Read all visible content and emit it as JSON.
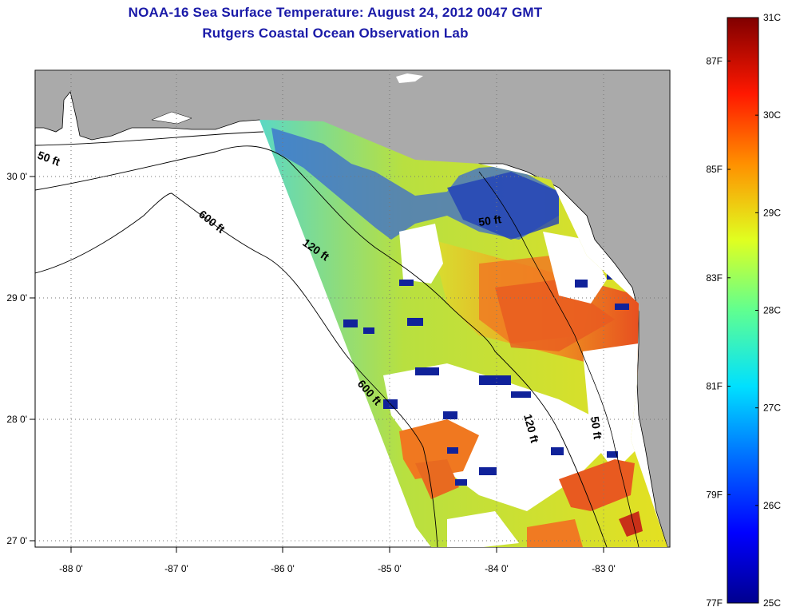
{
  "titles": {
    "line1": "NOAA-16 Sea Surface Temperature:  August 24, 2012 0047 GMT",
    "line2": "Rutgers Coastal Ocean Observation Lab"
  },
  "axes": {
    "x_labels": [
      "-88 0'",
      "-87 0'",
      "-86 0'",
      "-85 0'",
      "-84 0'",
      "-83 0'"
    ],
    "y_labels": [
      "30 0'",
      "29 0'",
      "28 0'",
      "27 0'"
    ]
  },
  "contours": [
    {
      "label": "50 ft"
    },
    {
      "label": "120 ft"
    },
    {
      "label": "600 ft"
    },
    {
      "label": "600 ft"
    },
    {
      "label": "50 ft"
    },
    {
      "label": "120 ft"
    },
    {
      "label": "50 ft"
    }
  ],
  "colorbar": {
    "celsius_labels": [
      "31C",
      "30C",
      "29C",
      "28C",
      "27C",
      "26C",
      "25C"
    ],
    "fahrenheit_labels": [
      "87F",
      "85F",
      "83F",
      "81F",
      "79F",
      "77F"
    ],
    "min_c": 25,
    "max_c": 31
  },
  "colors": {
    "land": "#aaaaaa",
    "title": "#1a1aa8",
    "hot": "#e8441c",
    "warm": "#f08a20",
    "mild": "#e6e620",
    "green": "#90e050",
    "cool": "#30c8e8",
    "cold": "#1830b0"
  }
}
